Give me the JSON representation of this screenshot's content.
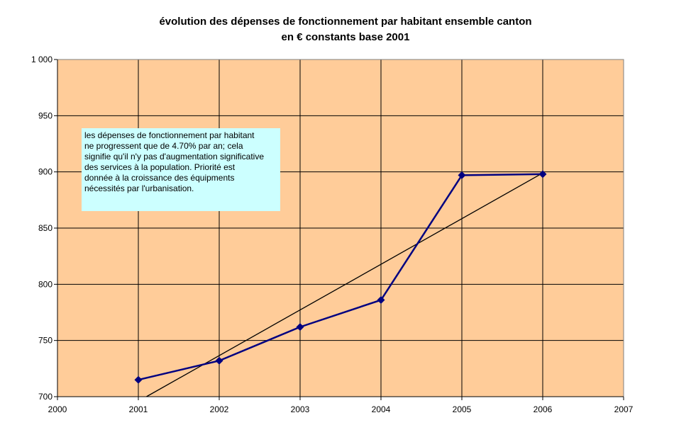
{
  "chart_data": {
    "type": "line",
    "title": "évolution des dépenses de fonctionnement  par habitant ensemble canton",
    "subtitle": "en € constants base 2001",
    "xlabel": "",
    "ylabel": "",
    "xlim": [
      2000,
      2007
    ],
    "ylim": [
      700,
      1000
    ],
    "x_ticks": [
      2000,
      2001,
      2002,
      2003,
      2004,
      2005,
      2006,
      2007
    ],
    "y_ticks": [
      700,
      750,
      800,
      850,
      900,
      950,
      1000
    ],
    "y_tick_labels": [
      "700",
      "750",
      "800",
      "850",
      "900",
      "950",
      "1 000"
    ],
    "grid": true,
    "series": [
      {
        "x": [
          2001,
          2002,
          2003,
          2004,
          2005,
          2006
        ],
        "values": [
          715,
          732,
          762,
          786,
          897,
          898
        ],
        "color": "#000080",
        "marker": "diamond"
      }
    ],
    "trendline": {
      "type": "linear",
      "x": [
        2001.1,
        2006
      ],
      "values": [
        700,
        899
      ],
      "color": "#000000"
    },
    "annotation": "les dépenses de fonctionnement par habitant\nne progressent que  de 4.70% par an; cela\nsignifie qu'il n'y pas d'augmentation significative\ndes services à la population. Priorité est\ndonnée à la croissance des équipments\nnécessités par l'urbanisation.",
    "colors": {
      "plot_background": "#ffcc99",
      "grid": "#000000",
      "annotation_background": "#ccffff"
    }
  }
}
